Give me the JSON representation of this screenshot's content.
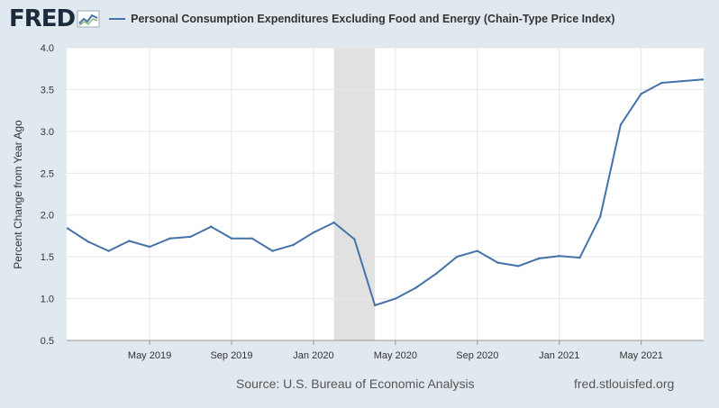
{
  "header": {
    "logo_text": "FRED",
    "series_label": "Personal Consumption Expenditures Excluding Food and Energy (Chain-Type Price Index)"
  },
  "colors": {
    "series": "#4572a7",
    "recession": "#e1e1e1",
    "background": "#e1e9f0",
    "plot": "#ffffff"
  },
  "footer": {
    "source": "Source: U.S. Bureau of Economic Analysis",
    "url": "fred.stlouisfed.org"
  },
  "chart_data": {
    "type": "line",
    "ylabel": "Percent Change from Year Ago",
    "ylim": [
      0.5,
      4.0
    ],
    "xlim": [
      "2019-01",
      "2021-08"
    ],
    "y_ticks": [
      "0.5",
      "1.0",
      "1.5",
      "2.0",
      "2.5",
      "3.0",
      "3.5",
      "4.0"
    ],
    "x_ticks": [
      {
        "label": "May 2019",
        "x": "2019-05"
      },
      {
        "label": "Sep 2019",
        "x": "2019-09"
      },
      {
        "label": "Jan 2020",
        "x": "2020-01"
      },
      {
        "label": "May 2020",
        "x": "2020-05"
      },
      {
        "label": "Sep 2020",
        "x": "2020-09"
      },
      {
        "label": "Jan 2021",
        "x": "2021-01"
      },
      {
        "label": "May 2021",
        "x": "2021-05"
      }
    ],
    "grid": true,
    "legend": "top",
    "recession": {
      "start": "2020-02",
      "end": "2020-04"
    },
    "series": [
      {
        "name": "Personal Consumption Expenditures Excluding Food and Energy (Chain-Type Price Index)",
        "x": [
          "2019-01",
          "2019-02",
          "2019-03",
          "2019-04",
          "2019-05",
          "2019-06",
          "2019-07",
          "2019-08",
          "2019-09",
          "2019-10",
          "2019-11",
          "2019-12",
          "2020-01",
          "2020-02",
          "2020-03",
          "2020-04",
          "2020-05",
          "2020-06",
          "2020-07",
          "2020-08",
          "2020-09",
          "2020-10",
          "2020-11",
          "2020-12",
          "2021-01",
          "2021-02",
          "2021-03",
          "2021-04",
          "2021-05",
          "2021-06",
          "2021-07",
          "2021-08"
        ],
        "values": [
          1.84,
          1.68,
          1.57,
          1.69,
          1.62,
          1.72,
          1.74,
          1.86,
          1.72,
          1.72,
          1.57,
          1.64,
          1.79,
          1.91,
          1.71,
          0.92,
          1.0,
          1.13,
          1.3,
          1.5,
          1.57,
          1.43,
          1.39,
          1.48,
          1.51,
          1.49,
          1.98,
          3.08,
          3.45,
          3.58,
          3.6,
          3.62
        ]
      }
    ]
  }
}
